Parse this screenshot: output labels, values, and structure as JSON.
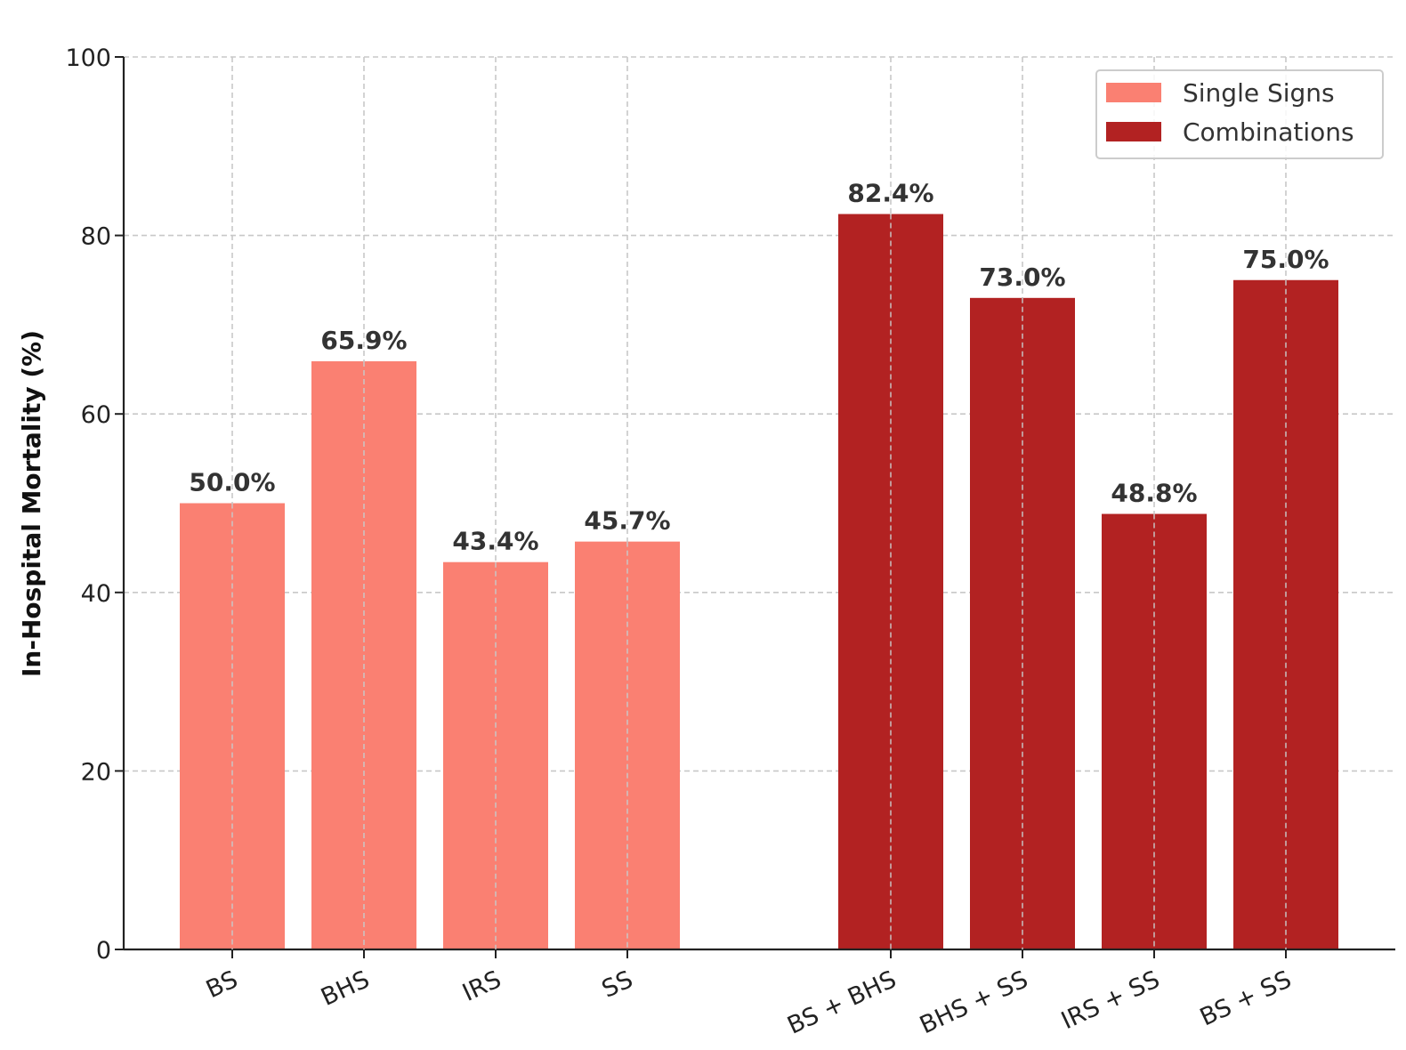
{
  "chart_data": {
    "type": "bar",
    "ylabel": "In-Hospital Mortality (%)",
    "xlabel": "",
    "ylim": [
      0,
      100
    ],
    "yticks": [
      "0",
      "20",
      "40",
      "60",
      "80",
      "100"
    ],
    "grid": true,
    "legend_position": "top-right",
    "series": [
      {
        "name": "Single Signs",
        "color": "#fa8072",
        "categories": [
          "BS",
          "BHS",
          "IRS",
          "SS"
        ],
        "values": [
          50.0,
          65.9,
          43.4,
          45.7
        ],
        "labels": [
          "50.0%",
          "65.9%",
          "43.4%",
          "45.7%"
        ]
      },
      {
        "name": "Combinations",
        "color": "#b22222",
        "categories": [
          "BS + BHS",
          "BHS + SS",
          "IRS + SS",
          "BS + SS"
        ],
        "values": [
          82.4,
          73.0,
          48.8,
          75.0
        ],
        "labels": [
          "82.4%",
          "73.0%",
          "48.8%",
          "75.0%"
        ]
      }
    ]
  }
}
